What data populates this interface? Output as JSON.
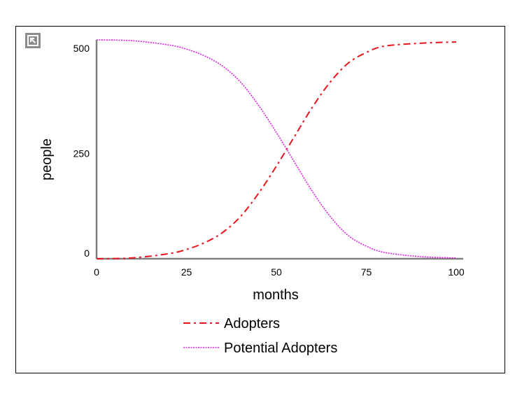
{
  "chart_data": {
    "type": "line",
    "title": "",
    "xlabel": "months",
    "ylabel": "people",
    "xlim": [
      0,
      100
    ],
    "ylim": [
      0,
      520
    ],
    "x_ticks": [
      0,
      25,
      50,
      75,
      100
    ],
    "y_ticks": [
      0,
      250,
      500
    ],
    "grid": false,
    "legend_position": "bottom",
    "x": [
      0,
      10,
      20,
      25,
      30,
      35,
      40,
      45,
      50,
      55,
      60,
      65,
      70,
      75,
      80,
      90,
      100
    ],
    "series": [
      {
        "name": "Adopters",
        "color": "#e8141c",
        "line_style": "dash-dot",
        "values": [
          0,
          2,
          12,
          22,
          38,
          62,
          100,
          155,
          220,
          290,
          360,
          420,
          465,
          490,
          505,
          512,
          515
        ]
      },
      {
        "name": "Potential Adopters",
        "color": "#e21ee6",
        "line_style": "dotted",
        "values": [
          520,
          518,
          508,
          498,
          482,
          458,
          420,
          365,
          300,
          230,
          160,
          100,
          55,
          30,
          15,
          5,
          2
        ]
      }
    ]
  },
  "controls": {
    "expand_icon": "expand-arrow-icon"
  }
}
